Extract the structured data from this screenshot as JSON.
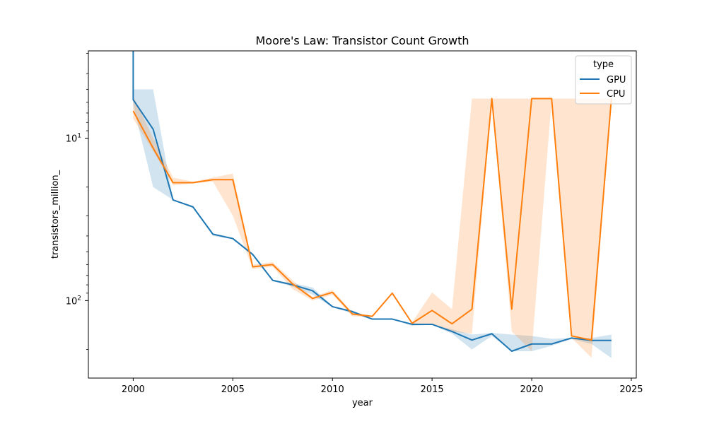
{
  "chart_data": {
    "type": "line",
    "title": "Moore's Law: Transistor Count Growth",
    "xlabel": "year",
    "ylabel": "transistors_million_",
    "xlim": [
      1997.75,
      2025.25
    ],
    "xticks": [
      2000,
      2005,
      2010,
      2015,
      2020,
      2025
    ],
    "y_scale": "log",
    "y_axis_inverted": true,
    "ylim_top": 2.9,
    "ylim_bottom": 300,
    "y_major_ticks": [
      10,
      100
    ],
    "y_major_tick_labels": [
      "10^1",
      "10^2"
    ],
    "y_minor_ticks": [
      3,
      4,
      5,
      6,
      7,
      8,
      9,
      20,
      30,
      40,
      50,
      60,
      70,
      80,
      90,
      200
    ],
    "grid": false,
    "legend": {
      "title": "type",
      "position": "top-right"
    },
    "series": [
      {
        "name": "GPU",
        "color": "#1f77b4",
        "x": [
          2000,
          2001,
          2002,
          2003,
          2004,
          2005,
          2006,
          2007,
          2008,
          2009,
          2010,
          2011,
          2012,
          2013,
          2014,
          2015,
          2016,
          2017,
          2018,
          2019,
          2020,
          2021,
          2022,
          2023,
          2024
        ],
        "values": [
          5.8,
          8.8,
          24,
          26.5,
          39,
          41.5,
          52,
          75,
          80,
          87,
          109,
          117,
          130,
          130,
          140,
          140,
          155,
          175,
          160,
          205,
          185,
          185,
          170,
          176,
          176
        ],
        "ci_low": [
          5.0,
          5.0,
          24,
          26,
          39,
          41,
          52,
          75,
          78,
          83,
          108,
          115,
          130,
          130,
          138,
          140,
          150,
          162,
          158,
          162,
          165,
          172,
          170,
          170,
          162
        ],
        "ci_high": [
          6.3,
          20,
          24,
          27,
          40,
          42,
          53,
          76,
          82,
          92,
          110,
          120,
          131,
          131,
          143,
          141,
          160,
          200,
          165,
          205,
          205,
          190,
          173,
          185,
          226
        ],
        "x_extra_at_start": 2000,
        "first_point_spike": [
          2.9,
          3.5
        ]
      },
      {
        "name": "CPU",
        "color": "#ff7f0e",
        "x": [
          2000,
          2001,
          2002,
          2003,
          2004,
          2005,
          2006,
          2007,
          2008,
          2009,
          2010,
          2011,
          2012,
          2013,
          2014,
          2015,
          2016,
          2017,
          2018,
          2019,
          2020,
          2021,
          2022,
          2023,
          2024
        ],
        "values": [
          6.8,
          11.5,
          18.8,
          18.8,
          18,
          18,
          62,
          60,
          79,
          97,
          89,
          121,
          125,
          90,
          138,
          115,
          139,
          113,
          5.7,
          113,
          5.7,
          5.7,
          165,
          175,
          5.7
        ],
        "ci_low": [
          5.5,
          10,
          17.5,
          18.5,
          17.5,
          16.5,
          60,
          58,
          75,
          95,
          86,
          118,
          124,
          89,
          136,
          89,
          113,
          5.7,
          5.7,
          5.7,
          5.7,
          5.7,
          5.7,
          5.7,
          5.7
        ],
        "ci_high": [
          7.6,
          12,
          19.5,
          19,
          18.5,
          30,
          64,
          62,
          85,
          100,
          92,
          125,
          126,
          91,
          140,
          140,
          155,
          160,
          5.8,
          155,
          205,
          5.8,
          170,
          225,
          5.8
        ]
      }
    ]
  }
}
